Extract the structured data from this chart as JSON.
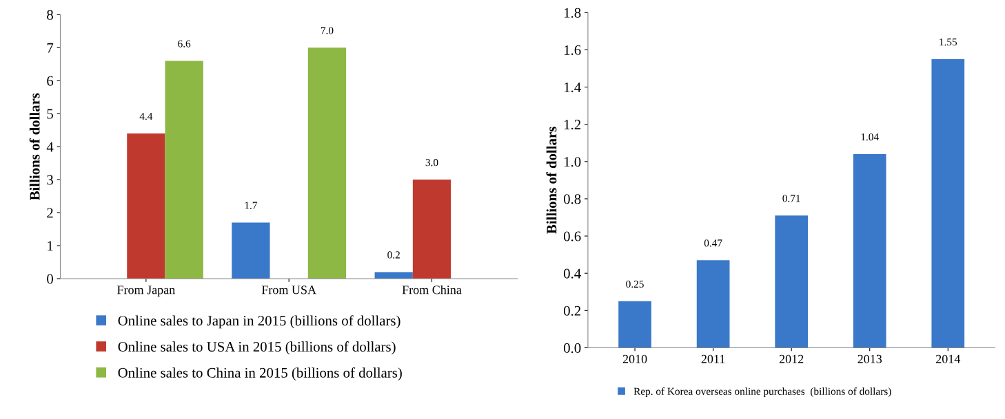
{
  "chart_data": [
    {
      "type": "bar",
      "ylabel": "Billions of dollars",
      "categories": [
        "From Japan",
        "From USA",
        "From China"
      ],
      "ylim": [
        0,
        8
      ],
      "yticks": [
        0,
        1,
        2,
        3,
        4,
        5,
        6,
        7,
        8
      ],
      "grid": false,
      "legend": "bottom",
      "series": [
        {
          "name": "Online sales to Japan in 2015 (billions of dollars)",
          "color": "#3a78c9",
          "values": [
            null,
            1.7,
            0.2
          ],
          "value_labels": [
            null,
            "1.7",
            "0.2"
          ]
        },
        {
          "name": "Online sales to USA in 2015 (billions of dollars)",
          "color": "#c0392f",
          "values": [
            4.4,
            null,
            3.0
          ],
          "value_labels": [
            "4.4",
            null,
            "3.0"
          ]
        },
        {
          "name": "Online sales to China in 2015 (billions of dollars)",
          "color": "#8db843",
          "values": [
            6.6,
            7.0,
            null
          ],
          "value_labels": [
            "6.6",
            "7.0",
            null
          ]
        }
      ]
    },
    {
      "type": "bar",
      "ylabel": "Billions of dollars",
      "categories": [
        "2010",
        "2011",
        "2012",
        "2013",
        "2014"
      ],
      "ylim": [
        0,
        1.8
      ],
      "yticks": [
        {
          "value": 0,
          "label": "0.0"
        },
        0.2,
        0.4,
        0.6,
        0.8,
        {
          "value": 1,
          "label": "1.0"
        },
        1.2,
        1.4,
        1.6,
        1.8
      ],
      "grid": false,
      "legend": "bottom",
      "data_labels": true,
      "series": [
        {
          "name": "Rep. of Korea overseas online purchases  (billions of dollars)",
          "color": "#3a78c9",
          "values": [
            0.25,
            0.47,
            0.71,
            1.04,
            1.55
          ]
        }
      ]
    }
  ]
}
